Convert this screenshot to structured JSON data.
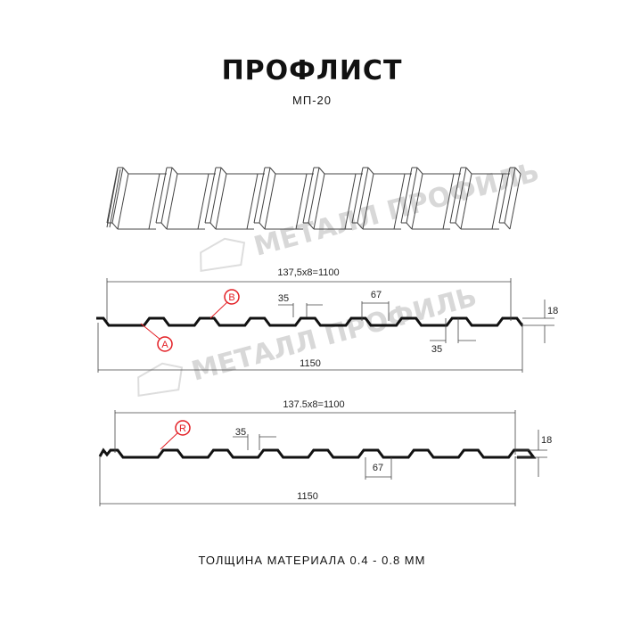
{
  "title": "ПРОФЛИСТ",
  "subtitle": "МП-20",
  "footer": "ТОЛЩИНА МАТЕРИАЛА 0.4 - 0.8 ММ",
  "watermark": "МЕТАЛЛ ПРОФИЛЬ",
  "accent_color": "#e31e24",
  "profile_a": {
    "pitch": "137,5x8=1100",
    "total": "1150",
    "crest": "35",
    "valley_gap": "67",
    "bottom": "35",
    "height": "18",
    "marker_a": "A",
    "marker_b": "B"
  },
  "profile_r": {
    "pitch": "137.5x8=1100",
    "total": "1150",
    "crest": "35",
    "valley_gap": "67",
    "height": "18",
    "marker_r": "R"
  }
}
